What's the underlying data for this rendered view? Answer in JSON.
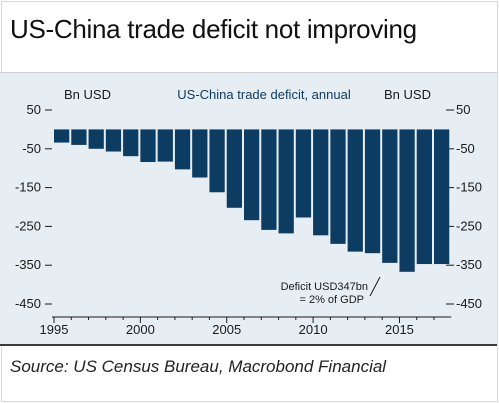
{
  "header": {
    "title": "US-China trade deficit not improving"
  },
  "footer": {
    "source": "Source: US Census Bureau, Macrobond Financial"
  },
  "colors": {
    "bar": "#0d3c62",
    "plot_background": "#e6eef4",
    "title_text": "#0d3c62"
  },
  "chart_data": {
    "type": "bar",
    "title": "US-China trade deficit, annual",
    "left_axis_unit": "Bn USD",
    "right_axis_unit": "Bn USD",
    "xlabel": "",
    "ylabel": "",
    "ylim": [
      -450,
      50
    ],
    "yticks": [
      50,
      -50,
      -150,
      -250,
      -350,
      -450
    ],
    "xticks": [
      1995,
      2000,
      2005,
      2010,
      2015
    ],
    "grid": false,
    "categories": [
      1995,
      1996,
      1997,
      1998,
      1999,
      2000,
      2001,
      2002,
      2003,
      2004,
      2005,
      2006,
      2007,
      2008,
      2009,
      2010,
      2011,
      2012,
      2013,
      2014,
      2015,
      2016,
      2017
    ],
    "values": [
      -34,
      -40,
      -50,
      -57,
      -69,
      -84,
      -83,
      -103,
      -124,
      -162,
      -202,
      -234,
      -259,
      -268,
      -227,
      -273,
      -295,
      -315,
      -319,
      -344,
      -367,
      -347,
      -347
    ],
    "annotation": {
      "line1": "Deficit USD347bn",
      "line2": "= 2% of GDP"
    }
  }
}
